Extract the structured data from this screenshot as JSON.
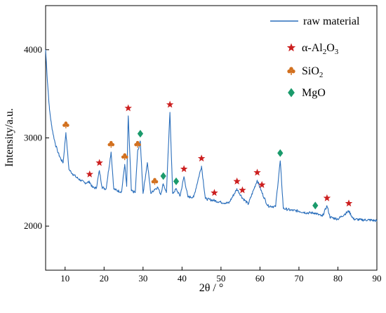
{
  "chart_data": {
    "type": "line",
    "xlabel": "2θ / °",
    "ylabel": "Intensity/a.u.",
    "xlim": [
      5,
      90
    ],
    "ylim": [
      1500,
      4500
    ],
    "x_ticks": [
      10,
      20,
      30,
      40,
      50,
      60,
      70,
      80,
      90
    ],
    "y_ticks": [
      2000,
      3000,
      4000
    ],
    "grid": false,
    "legend": "top-right",
    "series": [
      {
        "name": "raw material",
        "color": "#2a6ebb",
        "points": [
          [
            5,
            4000
          ],
          [
            5.5,
            3620
          ],
          [
            6,
            3320
          ],
          [
            6.5,
            3150
          ],
          [
            7,
            3030
          ],
          [
            7.5,
            2930
          ],
          [
            8,
            2860
          ],
          [
            8.5,
            2800
          ],
          [
            9,
            2750
          ],
          [
            9.5,
            2720
          ],
          [
            10.2,
            3060
          ],
          [
            11,
            2640
          ],
          [
            12,
            2590
          ],
          [
            13,
            2550
          ],
          [
            14,
            2520
          ],
          [
            15,
            2490
          ],
          [
            16.3,
            2500
          ],
          [
            17,
            2440
          ],
          [
            18,
            2430
          ],
          [
            18.8,
            2630
          ],
          [
            19.5,
            2440
          ],
          [
            20.5,
            2420
          ],
          [
            21.8,
            2840
          ],
          [
            22.5,
            2420
          ],
          [
            23.5,
            2400
          ],
          [
            24.5,
            2390
          ],
          [
            25.3,
            2700
          ],
          [
            25.8,
            2450
          ],
          [
            26.2,
            3250
          ],
          [
            27,
            2400
          ],
          [
            28,
            2380
          ],
          [
            28.6,
            2840
          ],
          [
            29.3,
            2960
          ],
          [
            30,
            2370
          ],
          [
            31.1,
            2720
          ],
          [
            32,
            2370
          ],
          [
            33,
            2420
          ],
          [
            33.8,
            2440
          ],
          [
            34.5,
            2360
          ],
          [
            35.2,
            2480
          ],
          [
            36,
            2380
          ],
          [
            36.9,
            3290
          ],
          [
            37.6,
            2370
          ],
          [
            38.5,
            2420
          ],
          [
            39.5,
            2340
          ],
          [
            40.5,
            2560
          ],
          [
            41.5,
            2330
          ],
          [
            43,
            2330
          ],
          [
            45,
            2680
          ],
          [
            46,
            2310
          ],
          [
            48.3,
            2290
          ],
          [
            50,
            2270
          ],
          [
            52,
            2260
          ],
          [
            54.1,
            2420
          ],
          [
            55.5,
            2320
          ],
          [
            57,
            2250
          ],
          [
            59.3,
            2520
          ],
          [
            60.5,
            2380
          ],
          [
            62,
            2230
          ],
          [
            64,
            2220
          ],
          [
            65.2,
            2740
          ],
          [
            66,
            2200
          ],
          [
            68,
            2180
          ],
          [
            70,
            2170
          ],
          [
            72,
            2150
          ],
          [
            74,
            2150
          ],
          [
            76,
            2110
          ],
          [
            77.2,
            2230
          ],
          [
            78,
            2100
          ],
          [
            80,
            2080
          ],
          [
            82.8,
            2170
          ],
          [
            84,
            2080
          ],
          [
            86,
            2070
          ],
          [
            88,
            2070
          ],
          [
            90,
            2060
          ]
        ]
      }
    ],
    "peak_markers": [
      {
        "phase": "α-Al2O3",
        "symbol": "star",
        "color": "#cc1f1f",
        "x": [
          16.3,
          18.8,
          26.2,
          36.9,
          40.5,
          45.0,
          48.3,
          54.1,
          55.5,
          59.3,
          60.5,
          77.2,
          82.8
        ]
      },
      {
        "phase": "SiO2",
        "symbol": "club",
        "color": "#d2701e",
        "x": [
          10.2,
          21.8,
          25.3,
          28.6,
          33.0
        ]
      },
      {
        "phase": "MgO",
        "symbol": "diamond",
        "color": "#1a9a6b",
        "x": [
          29.3,
          35.2,
          38.5,
          65.2,
          74.2
        ]
      }
    ],
    "legend_entries": [
      {
        "label": "raw material",
        "symbol": "line"
      },
      {
        "label": "α-Al",
        "sub1": "2",
        "mid": "O",
        "sub2": "3",
        "symbol": "star",
        "color": "#cc1f1f"
      },
      {
        "label": "SiO",
        "sub1": "2",
        "symbol": "club",
        "color": "#d2701e"
      },
      {
        "label": "MgO",
        "symbol": "diamond",
        "color": "#1a9a6b"
      }
    ]
  }
}
